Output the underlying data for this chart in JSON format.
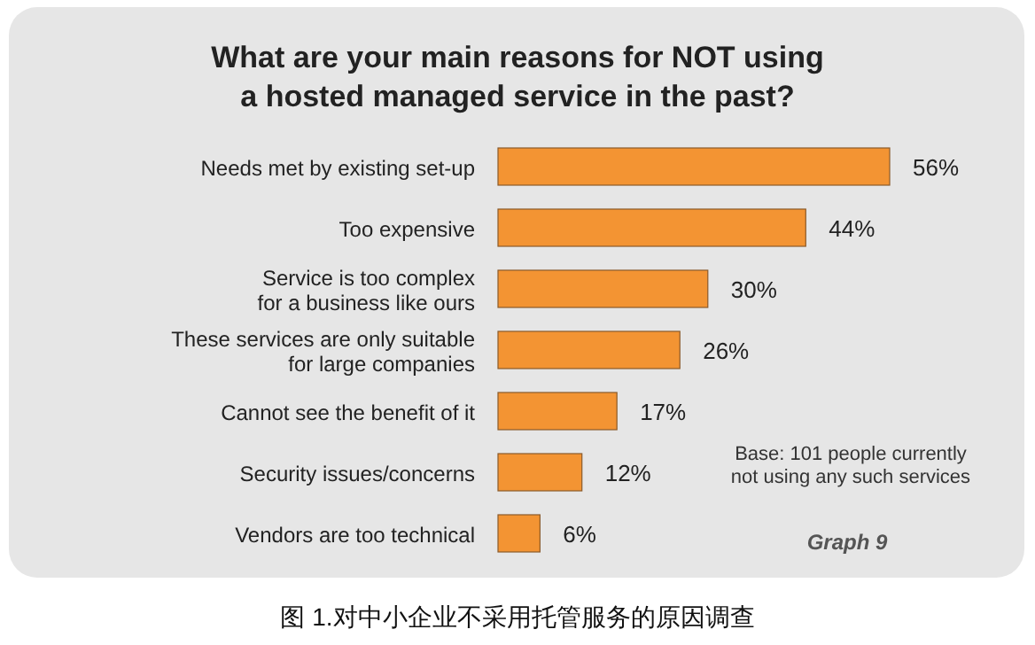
{
  "chart_data": {
    "type": "bar",
    "orientation": "horizontal",
    "title": "What are your main reasons for NOT using\na hosted managed service in the past?",
    "categories": [
      "Needs met by existing set-up",
      "Too expensive",
      "Service is too complex\nfor a business like ours",
      "These services are only suitable\nfor large companies",
      "Cannot see the benefit of it",
      "Security issues/concerns",
      "Vendors are too technical"
    ],
    "values": [
      56,
      44,
      30,
      26,
      17,
      12,
      6
    ],
    "value_labels": [
      "56%",
      "44%",
      "30%",
      "26%",
      "17%",
      "12%",
      "6%"
    ],
    "color": "#f39433",
    "annotations": [
      "Base: 101 people currently\nnot using any such services",
      "Graph 9",
      "图 1.对中小企业不采用托管服务的原因调查"
    ]
  }
}
